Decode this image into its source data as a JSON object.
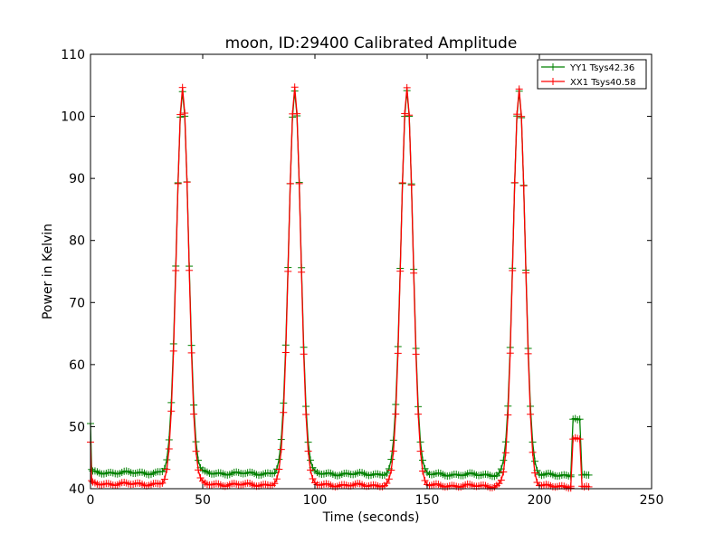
{
  "chart_data": {
    "type": "line",
    "title": "moon, ID:29400 Calibrated Amplitude",
    "xlabel": "Time (seconds)",
    "ylabel": "Power in Kelvin",
    "xlim": [
      0,
      250
    ],
    "ylim": [
      40,
      110
    ],
    "xticks": [
      0,
      50,
      100,
      150,
      200,
      250
    ],
    "yticks": [
      40,
      50,
      60,
      70,
      80,
      90,
      100,
      110
    ],
    "grid": false,
    "legend_position": "top-right",
    "peaks": [
      41,
      91,
      141,
      191
    ],
    "series": [
      {
        "name": "YY1 Tsys42.36",
        "color": "#008000",
        "marker": "+",
        "baseline": 42.6,
        "peak_value": 104.3,
        "x_end": 214,
        "start_spike": 50.5,
        "tail": [
          {
            "x": 214,
            "y": 42.2
          },
          {
            "x": 215,
            "y": 51.2
          },
          {
            "x": 216,
            "y": 51.3
          },
          {
            "x": 217,
            "y": 51.1
          },
          {
            "x": 218,
            "y": 51.2
          },
          {
            "x": 219,
            "y": 42.2
          },
          {
            "x": 220,
            "y": 42.3
          },
          {
            "x": 221,
            "y": 42.2
          },
          {
            "x": 222,
            "y": 42.2
          }
        ]
      },
      {
        "name": "XX1 Tsys40.58",
        "color": "#ff0000",
        "marker": "+",
        "baseline": 40.8,
        "peak_value": 104.8,
        "x_end": 214,
        "start_spike": 47.5,
        "tail": [
          {
            "x": 214,
            "y": 40.4
          },
          {
            "x": 215,
            "y": 48.0
          },
          {
            "x": 216,
            "y": 48.2
          },
          {
            "x": 217,
            "y": 48.1
          },
          {
            "x": 218,
            "y": 48.0
          },
          {
            "x": 219,
            "y": 40.4
          },
          {
            "x": 220,
            "y": 40.3
          },
          {
            "x": 221,
            "y": 40.4
          },
          {
            "x": 222,
            "y": 40.3
          }
        ]
      }
    ]
  }
}
